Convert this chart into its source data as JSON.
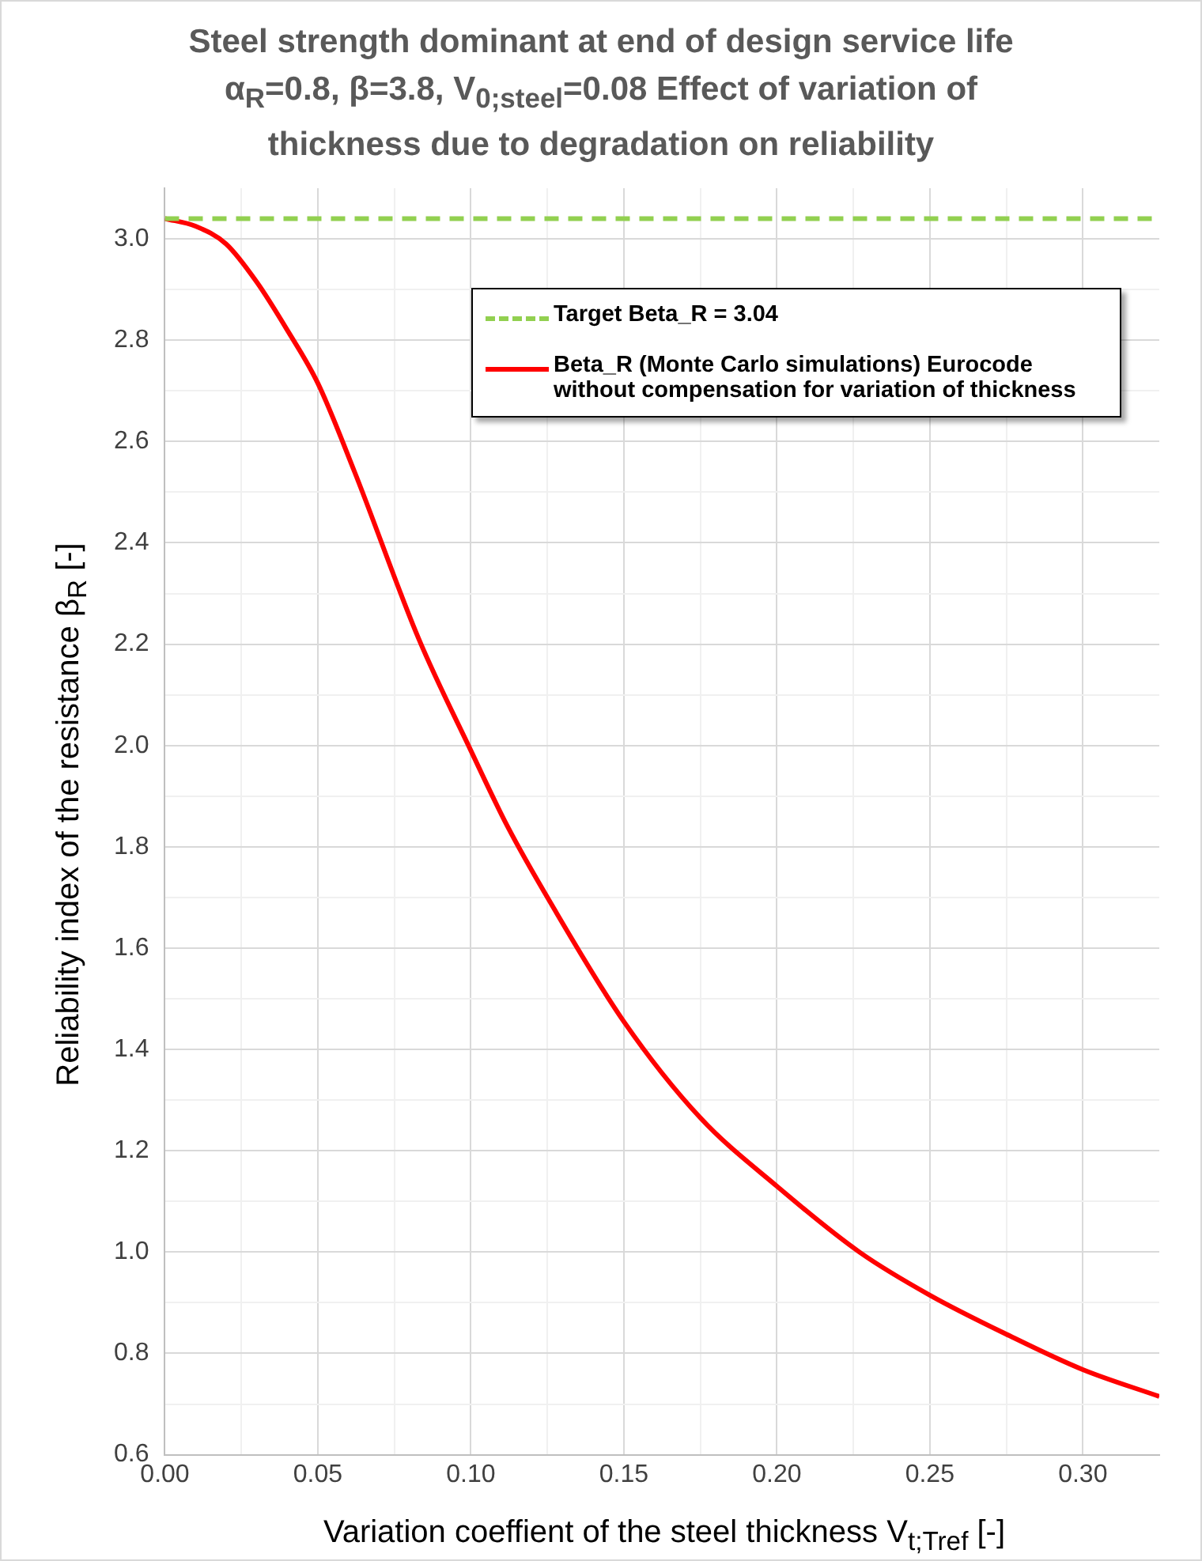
{
  "chart_data": {
    "type": "line",
    "title": "Steel strength dominant at end of design service life α$_{R}$=0.8, β=3.8, V$_{0;steel}$=0.08 Effect of variation of thickness due to degradation on reliability",
    "xlabel": "Variation coeffient of the steel thickness V$_{t;Tref}$ [-]",
    "ylabel": "Reliability index of the resistance β$_{R}$ [-]",
    "xlim": [
      0,
      0.325
    ],
    "ylim": [
      0.6,
      3.1
    ],
    "xticks": [
      {
        "value": 0,
        "label": "0.00"
      },
      {
        "value": 0.025,
        "label": null
      },
      0.05,
      {
        "value": 0.075,
        "label": null
      },
      {
        "value": 0.1,
        "label": "0.10"
      },
      {
        "value": 0.125,
        "label": null
      },
      0.15,
      {
        "value": 0.175,
        "label": null
      },
      {
        "value": 0.2,
        "label": "0.20"
      },
      {
        "value": 0.225,
        "label": null
      },
      0.25,
      {
        "value": 0.275,
        "label": null
      },
      {
        "value": 0.3,
        "label": "0.30"
      }
    ],
    "yticks": [
      0.6,
      {
        "value": 0.7,
        "label": null
      },
      0.8,
      {
        "value": 0.9,
        "label": null
      },
      {
        "value": 1,
        "label": "1.0"
      },
      {
        "value": 1.1,
        "label": null
      },
      1.2,
      {
        "value": 1.3,
        "label": null
      },
      1.4,
      {
        "value": 1.5,
        "label": null
      },
      1.6,
      {
        "value": 1.7,
        "label": null
      },
      1.8,
      {
        "value": 1.9,
        "label": null
      },
      {
        "value": 2,
        "label": "2.0"
      },
      {
        "value": 2.1,
        "label": null
      },
      2.2,
      {
        "value": 2.3,
        "label": null
      },
      2.4,
      {
        "value": 2.5,
        "label": null
      },
      2.6,
      {
        "value": 2.7,
        "label": null
      },
      2.8,
      {
        "value": 2.9,
        "label": null
      },
      {
        "value": 3,
        "label": "3.0"
      }
    ],
    "grid": true,
    "legend": "top right",
    "marker": "none",
    "series": [
      {
        "name": "Target Beta_R = 3.04",
        "color": "#92d050",
        "line_style": "dashed",
        "x": [
          0,
          0.325
        ],
        "values": [
          3.04,
          3.04
        ]
      },
      {
        "name": "Beta_R (Monte Carlo simulations) Eurocode without compensation for variation of thickness",
        "color": "#ff0000",
        "line_style": "solid",
        "x": [
          0,
          0.01,
          0.02,
          0.03,
          0.04,
          0.05,
          0.062,
          0.083,
          0.1,
          0.112,
          0.126,
          0.15,
          0.175,
          0.2,
          0.227,
          0.25,
          0.276,
          0.3,
          0.325
        ],
        "values": [
          3.04,
          3.025,
          2.99,
          2.915,
          2.82,
          2.715,
          2.54,
          2.21,
          1.99,
          1.84,
          1.69,
          1.455,
          1.265,
          1.13,
          1.0,
          0.915,
          0.835,
          0.768,
          0.715
        ]
      }
    ]
  }
}
